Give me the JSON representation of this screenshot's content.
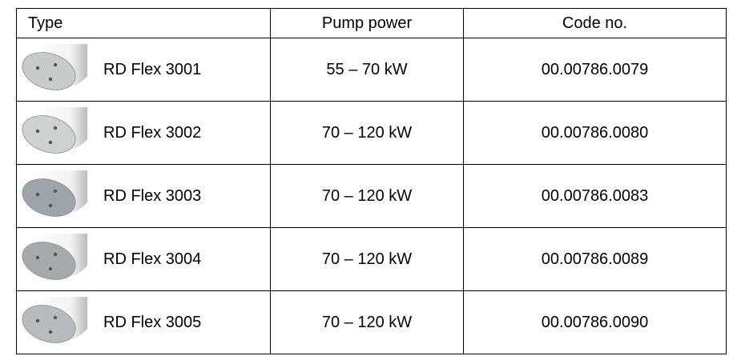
{
  "table": {
    "header": [
      "Type",
      "Pump power",
      "Code no."
    ],
    "rows": [
      [
        "RD Flex 3001",
        "55 – 70 kW",
        "00.00786.0079"
      ],
      [
        "RD Flex 3002",
        "70 – 120 kW",
        "00.00786.0080"
      ],
      [
        "RD Flex 3003",
        "70 – 120 kW",
        "00.00786.0083"
      ],
      [
        "RD Flex 3004",
        "70 – 120 kW",
        "00.00786.0089"
      ],
      [
        "RD Flex 3005",
        "70 – 120 kW",
        "00.00786.0090"
      ]
    ]
  }
}
